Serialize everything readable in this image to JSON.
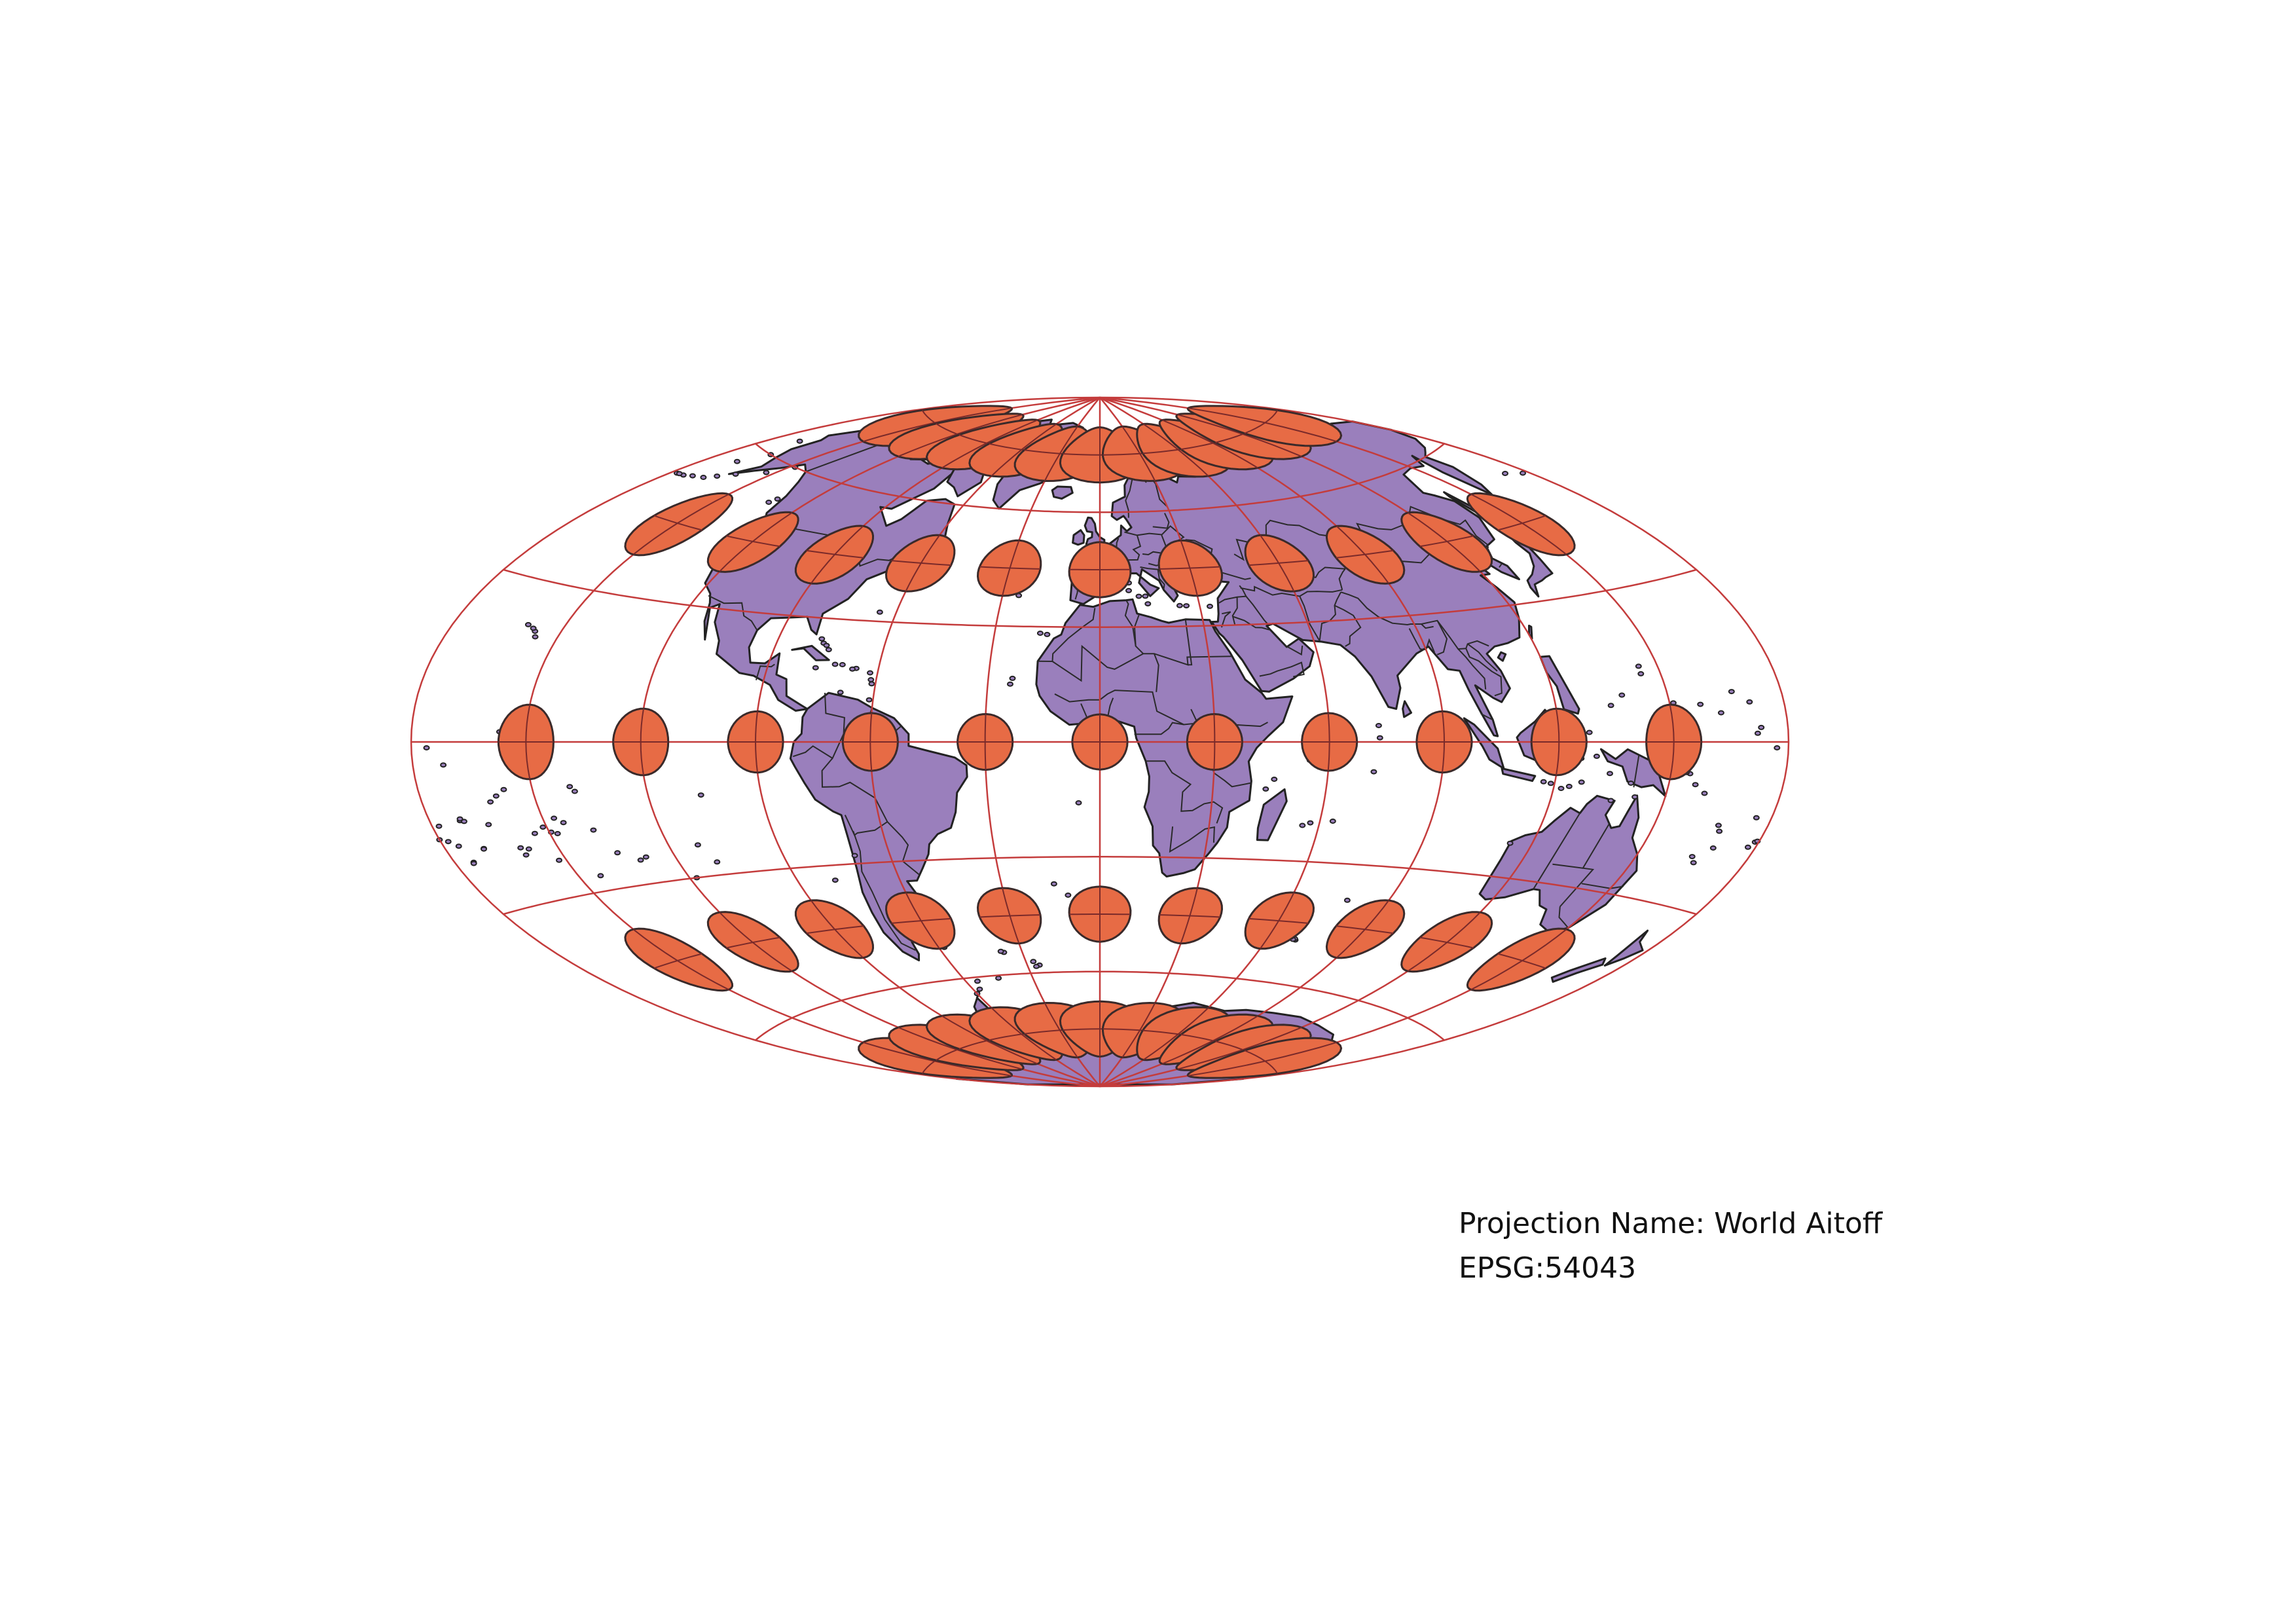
{
  "map": {
    "projection_label": "Projection Name:",
    "projection_name": "World Aitoff",
    "epsg_label": "EPSG:",
    "epsg_code": "54043",
    "parallels_deg": [
      -90,
      -60,
      -30,
      0,
      30,
      60,
      90
    ],
    "meridians_deg": [
      -180,
      -150,
      -120,
      -90,
      -60,
      -30,
      0,
      30,
      60,
      90,
      120,
      150,
      180
    ],
    "indicatrix_latitudes_deg": [
      -75,
      -45,
      0,
      45,
      75
    ],
    "indicatrix_longitudes_deg": [
      -150,
      -120,
      -90,
      -60,
      -30,
      0,
      30,
      60,
      90,
      120,
      150
    ]
  },
  "colors": {
    "land": "#9a7fbc",
    "indicatrix": "#e76b45",
    "graticule": "#c43c3c",
    "background": "#ffffff"
  }
}
